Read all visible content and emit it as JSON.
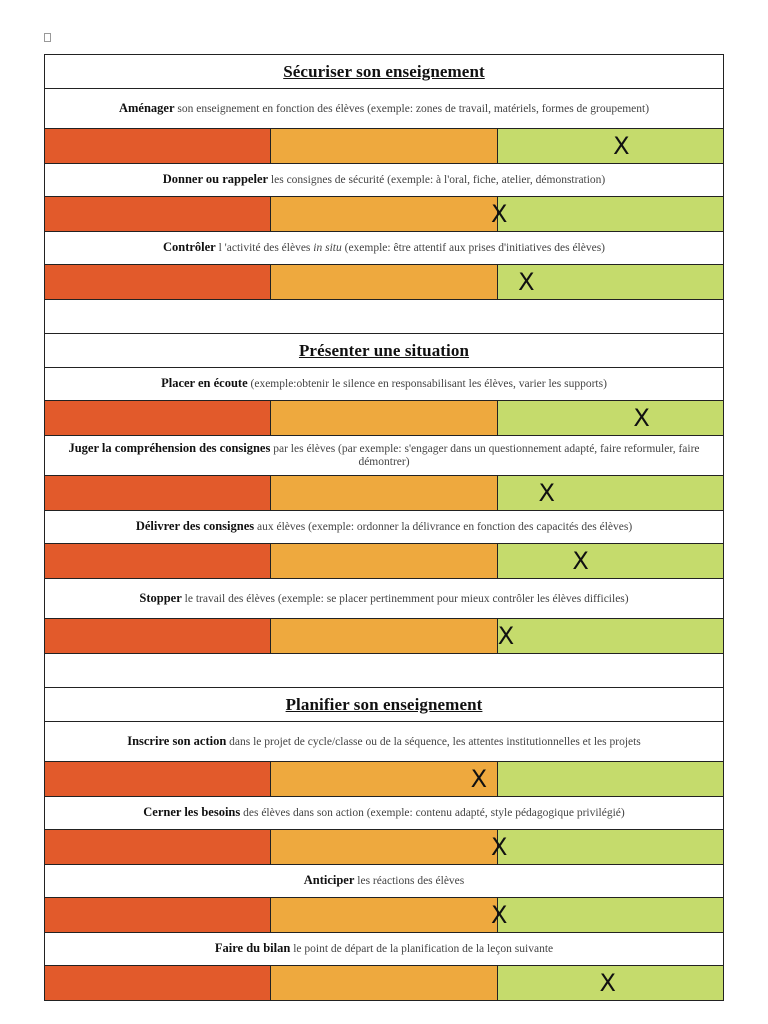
{
  "sections": [
    {
      "title": "Sécuriser son enseignement",
      "criteria": [
        {
          "key": "Aménager",
          "desc": " son enseignement en fonction des élèves (exemple: zones de travail, matériels, formes de groupement)",
          "rating": 0.85,
          "mark": "X"
        },
        {
          "key": "Donner ou rappeler",
          "desc": " les consignes de sécurité (exemple: à l'oral, fiche, atelier, démonstration)",
          "rating": 0.67,
          "mark": "X"
        },
        {
          "key": "Contrôler",
          "desc": " l 'activité des élèves in situ (exemple: être attentif aux prises d'initiatives des élèves)",
          "rating": 0.71,
          "mark": "X"
        }
      ]
    },
    {
      "title": "Présenter une situation",
      "criteria": [
        {
          "key": "Placer en écoute",
          "desc": " (exemple:obtenir le silence en responsabilisant les élèves, varier les supports)",
          "rating": 0.88,
          "mark": "X"
        },
        {
          "key": "Juger la compréhension des consignes",
          "desc": " par les élèves (par exemple: s'engager dans un questionnement adapté, faire reformuler, faire démontrer)",
          "rating": 0.74,
          "mark": "X"
        },
        {
          "key": "Délivrer des consignes",
          "desc": " aux élèves (exemple: ordonner la délivrance en fonction des capacités des élèves)",
          "rating": 0.79,
          "mark": "X"
        },
        {
          "key": "Stopper",
          "desc": " le travail des élèves (exemple: se placer pertinemment pour mieux contrôler les élèves difficiles)",
          "rating": 0.68,
          "mark": "X"
        }
      ]
    },
    {
      "title": "Planifier son enseignement",
      "criteria": [
        {
          "key": "Inscrire son action",
          "desc": " dans le projet de cycle/classe ou de la séquence, les attentes institutionnelles et les projets",
          "rating": 0.64,
          "mark": "X"
        },
        {
          "key": "Cerner les besoins",
          "desc": " des élèves dans son action (exemple: contenu adapté, style pédagogique privilégié)",
          "rating": 0.67,
          "mark": "X"
        },
        {
          "key": "Anticiper",
          "desc": " les réactions des élèves",
          "rating": 0.67,
          "mark": "X"
        },
        {
          "key": "Faire du bilan",
          "desc": " le point de départ de la planification de la leçon suivante",
          "rating": 0.83,
          "mark": "X"
        }
      ]
    }
  ],
  "scale_colors": {
    "low": "#e25a2b",
    "mid": "#eea93e",
    "high": "#c5db6c"
  }
}
